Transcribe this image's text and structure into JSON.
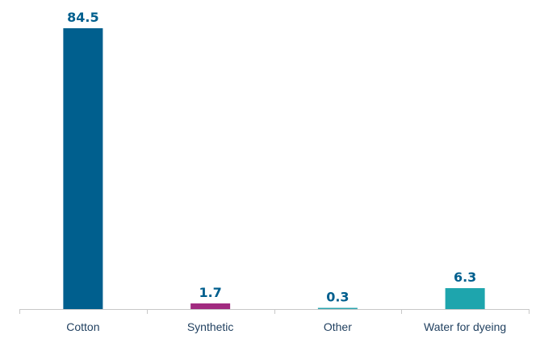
{
  "chart_data": {
    "type": "bar",
    "categories": [
      "Cotton",
      "Synthetic",
      "Other",
      "Water for dyeing"
    ],
    "values": [
      84.5,
      1.7,
      0.3,
      6.3
    ],
    "value_labels": [
      "84.5",
      "1.7",
      "0.3",
      "6.3"
    ],
    "colors": [
      "#005f8e",
      "#a12b80",
      "#2aa3ad",
      "#1ea5ad"
    ],
    "label_color": "#005f8e",
    "title": "",
    "xlabel": "",
    "ylabel": "",
    "ylim": [
      0,
      84.5
    ],
    "grid": false,
    "legend": "none"
  }
}
